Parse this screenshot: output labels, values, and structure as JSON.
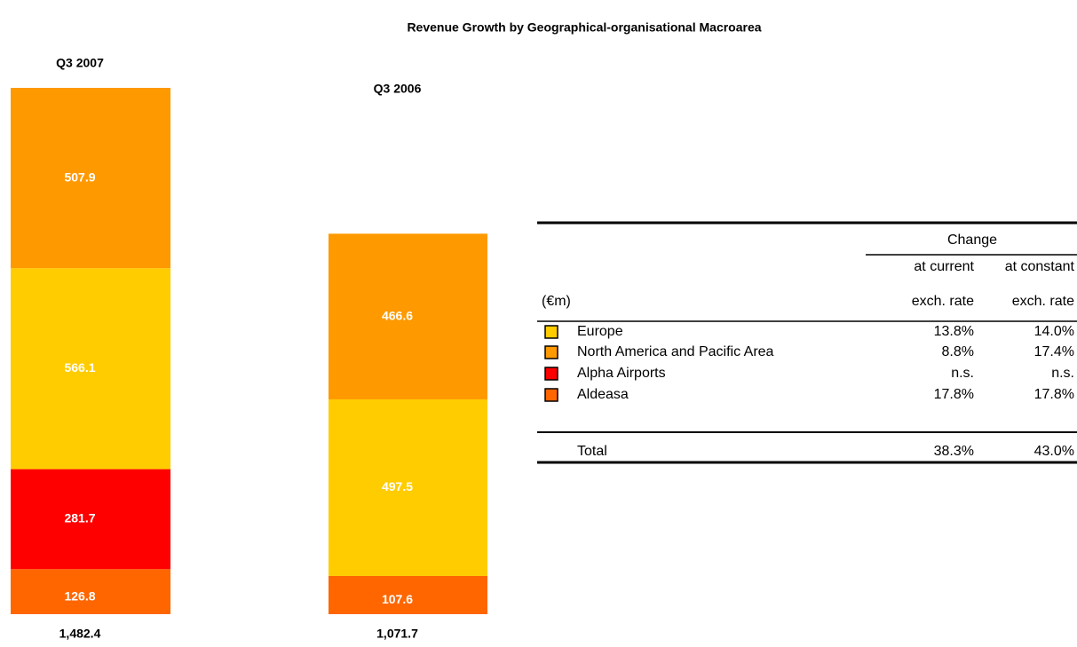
{
  "chart_data": {
    "type": "stacked_bar",
    "title": "Revenue Growth by Geographical-organisational Macroarea",
    "categories": [
      "Q3  2007",
      "Q3  2006"
    ],
    "ylim": [
      0,
      1500
    ],
    "series": [
      {
        "name": "Europe",
        "color": "#ffcc00",
        "values": [
          566.1,
          497.5
        ]
      },
      {
        "name": "North America and Pacific Area",
        "color": "#ff9900",
        "values": [
          507.9,
          466.6
        ]
      },
      {
        "name": "Alpha Airports",
        "color": "#ff0000",
        "values": [
          281.7,
          null
        ]
      },
      {
        "name": "Aldeasa",
        "color": "#ff6600",
        "values": [
          126.8,
          107.6
        ]
      }
    ],
    "total_labels": [
      "1,482.4",
      "1,071.7"
    ]
  },
  "table": {
    "unit": "(€m)",
    "group_header": "Change",
    "columns": [
      [
        "at current",
        "exch. rate"
      ],
      [
        "at constant",
        "exch. rate"
      ]
    ],
    "rows": [
      [
        "13.8%",
        "14.0%"
      ],
      [
        "8.8%",
        "17.4%"
      ],
      [
        "n.s.",
        "n.s."
      ],
      [
        "17.8%",
        "17.8%"
      ]
    ],
    "total": {
      "name": "Total",
      "values": [
        "38.3%",
        "43.0%"
      ]
    }
  }
}
